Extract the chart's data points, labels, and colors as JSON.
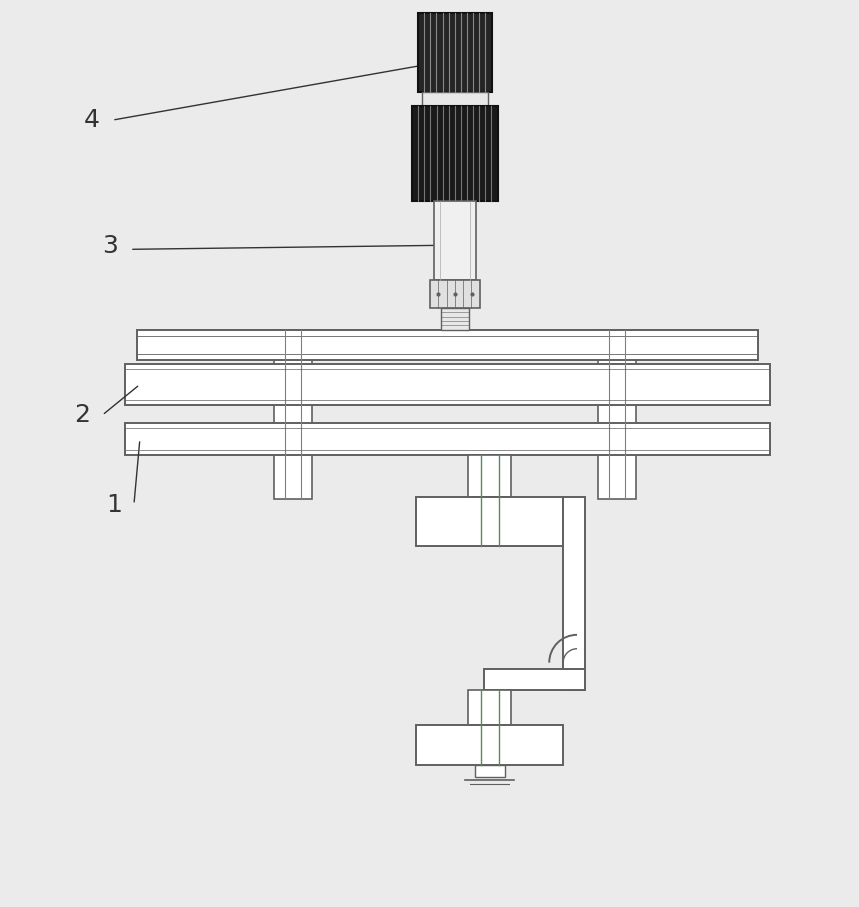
{
  "bg_color": "#ebebeb",
  "line_color": "#606060",
  "dark_color": "#1a1a1a",
  "label_color": "#333333",
  "fig_width": 8.59,
  "fig_height": 9.07
}
